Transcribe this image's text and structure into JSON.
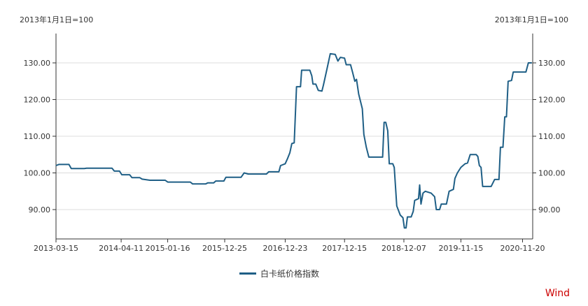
{
  "chart_data": {
    "type": "line",
    "y_unit_left": "2013年1月1日=100",
    "y_unit_right": "2013年1月1日=100",
    "x_tick_labels": [
      "2013-03-15",
      "2014-04-11",
      "2015-01-16",
      "2015-12-25",
      "2016-12-23",
      "2017-12-15",
      "2018-12-07",
      "2019-11-15",
      "2020-11-20"
    ],
    "y_ticks": [
      90,
      100,
      110,
      120,
      130
    ],
    "y_tick_labels": [
      "90.00",
      "100.00",
      "110.00",
      "120.00",
      "130.00"
    ],
    "ylim": [
      82,
      138
    ],
    "xlim": [
      "2013-03-15",
      "2021-01-20"
    ],
    "grid": true,
    "legend_position": "bottom-center",
    "series": [
      {
        "name": "白卡纸价格指数",
        "color": "#1f5f86",
        "points": [
          [
            "2013-03-15",
            102.0
          ],
          [
            "2013-04-01",
            102.3
          ],
          [
            "2013-06-01",
            102.3
          ],
          [
            "2013-06-15",
            101.2
          ],
          [
            "2013-09-01",
            101.2
          ],
          [
            "2013-09-15",
            101.3
          ],
          [
            "2014-02-15",
            101.3
          ],
          [
            "2014-03-01",
            100.5
          ],
          [
            "2014-04-01",
            100.5
          ],
          [
            "2014-04-15",
            99.5
          ],
          [
            "2014-06-01",
            99.5
          ],
          [
            "2014-06-15",
            98.7
          ],
          [
            "2014-08-01",
            98.7
          ],
          [
            "2014-08-15",
            98.3
          ],
          [
            "2014-10-01",
            98.0
          ],
          [
            "2015-01-01",
            98.0
          ],
          [
            "2015-01-16",
            97.5
          ],
          [
            "2015-06-01",
            97.5
          ],
          [
            "2015-06-15",
            97.0
          ],
          [
            "2015-09-01",
            97.0
          ],
          [
            "2015-09-15",
            97.3
          ],
          [
            "2015-10-20",
            97.3
          ],
          [
            "2015-11-01",
            97.8
          ],
          [
            "2015-12-20",
            97.8
          ],
          [
            "2016-01-01",
            98.8
          ],
          [
            "2016-04-01",
            98.8
          ],
          [
            "2016-04-20",
            100.0
          ],
          [
            "2016-05-15",
            99.7
          ],
          [
            "2016-09-01",
            99.7
          ],
          [
            "2016-09-15",
            100.3
          ],
          [
            "2016-11-15",
            100.3
          ],
          [
            "2016-11-25",
            102.0
          ],
          [
            "2016-12-23",
            102.5
          ],
          [
            "2017-01-05",
            103.8
          ],
          [
            "2017-01-20",
            105.5
          ],
          [
            "2017-02-01",
            108.0
          ],
          [
            "2017-02-15",
            108.2
          ],
          [
            "2017-03-01",
            123.5
          ],
          [
            "2017-03-25",
            123.5
          ],
          [
            "2017-04-01",
            128.0
          ],
          [
            "2017-05-20",
            128.0
          ],
          [
            "2017-06-01",
            126.5
          ],
          [
            "2017-06-08",
            124.2
          ],
          [
            "2017-06-25",
            124.2
          ],
          [
            "2017-07-10",
            122.5
          ],
          [
            "2017-08-01",
            122.3
          ],
          [
            "2017-08-10",
            124.0
          ],
          [
            "2017-09-01",
            128.5
          ],
          [
            "2017-09-20",
            132.5
          ],
          [
            "2017-10-20",
            132.3
          ],
          [
            "2017-11-05",
            130.5
          ],
          [
            "2017-11-20",
            131.5
          ],
          [
            "2017-12-15",
            131.3
          ],
          [
            "2017-12-25",
            129.5
          ],
          [
            "2018-01-20",
            129.5
          ],
          [
            "2018-02-01",
            127.5
          ],
          [
            "2018-02-15",
            125.0
          ],
          [
            "2018-02-25",
            125.5
          ],
          [
            "2018-03-10",
            121.5
          ],
          [
            "2018-04-01",
            117.5
          ],
          [
            "2018-04-10",
            110.5
          ],
          [
            "2018-04-25",
            107.0
          ],
          [
            "2018-05-10",
            104.3
          ],
          [
            "2018-08-01",
            104.3
          ],
          [
            "2018-08-10",
            113.8
          ],
          [
            "2018-08-20",
            113.8
          ],
          [
            "2018-09-01",
            111.5
          ],
          [
            "2018-09-10",
            102.5
          ],
          [
            "2018-10-01",
            102.5
          ],
          [
            "2018-10-10",
            101.5
          ],
          [
            "2018-10-25",
            91.0
          ],
          [
            "2018-11-15",
            88.5
          ],
          [
            "2018-12-01",
            87.8
          ],
          [
            "2018-12-10",
            85.0
          ],
          [
            "2018-12-20",
            85.0
          ],
          [
            "2018-12-28",
            88.0
          ],
          [
            "2019-01-20",
            88.0
          ],
          [
            "2019-02-01",
            89.5
          ],
          [
            "2019-02-10",
            92.5
          ],
          [
            "2019-03-05",
            93.0
          ],
          [
            "2019-03-12",
            96.7
          ],
          [
            "2019-03-20",
            91.5
          ],
          [
            "2019-04-01",
            94.5
          ],
          [
            "2019-04-15",
            95.0
          ],
          [
            "2019-05-20",
            94.5
          ],
          [
            "2019-06-10",
            93.5
          ],
          [
            "2019-06-20",
            90.0
          ],
          [
            "2019-07-10",
            90.0
          ],
          [
            "2019-07-20",
            91.5
          ],
          [
            "2019-08-20",
            91.5
          ],
          [
            "2019-09-05",
            95.0
          ],
          [
            "2019-10-01",
            95.5
          ],
          [
            "2019-10-10",
            98.5
          ],
          [
            "2019-10-25",
            100.0
          ],
          [
            "2019-11-15",
            101.5
          ],
          [
            "2019-12-10",
            102.5
          ],
          [
            "2019-12-25",
            102.7
          ],
          [
            "2020-01-10",
            105.0
          ],
          [
            "2020-02-15",
            105.0
          ],
          [
            "2020-02-25",
            104.5
          ],
          [
            "2020-03-05",
            102.0
          ],
          [
            "2020-03-15",
            101.5
          ],
          [
            "2020-03-25",
            96.3
          ],
          [
            "2020-05-15",
            96.3
          ],
          [
            "2020-06-05",
            98.2
          ],
          [
            "2020-07-01",
            98.2
          ],
          [
            "2020-07-10",
            107.0
          ],
          [
            "2020-07-25",
            107.0
          ],
          [
            "2020-08-05",
            115.3
          ],
          [
            "2020-08-15",
            115.3
          ],
          [
            "2020-08-25",
            125.0
          ],
          [
            "2020-09-15",
            125.2
          ],
          [
            "2020-09-25",
            127.5
          ],
          [
            "2020-11-20",
            127.5
          ],
          [
            "2020-12-10",
            127.5
          ],
          [
            "2020-12-25",
            130.0
          ],
          [
            "2021-01-15",
            130.0
          ]
        ]
      }
    ],
    "source": "Wind"
  }
}
